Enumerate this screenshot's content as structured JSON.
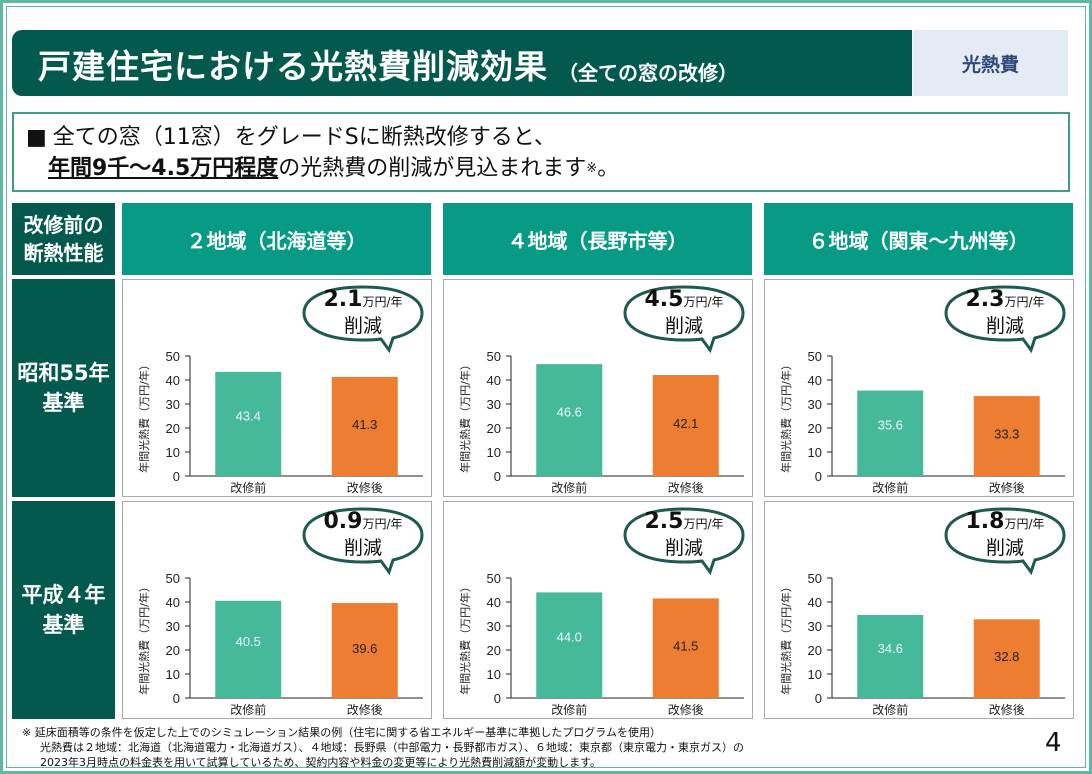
{
  "header": {
    "title": "戸建住宅における光熱費削減効果",
    "subtitle": "（全ての窓の改修）",
    "tag": "光熱費"
  },
  "summary": {
    "bullet": "■",
    "line1": "全ての窓（11窓）をグレードSに断熱改修すると、",
    "line2_emphasis": "年間9千～4.5万円程度",
    "line2_rest": "の光熱費の削減が見込まれます",
    "line2_note": "※",
    "line2_end": "。"
  },
  "table": {
    "corner_label_line1": "改修前の",
    "corner_label_line2": "断熱性能",
    "columns": [
      "２地域（北海道等）",
      "４地域（長野市等）",
      "６地域（関東～九州等）"
    ],
    "rows": [
      {
        "line1": "昭和55年",
        "line2": "基準"
      },
      {
        "line1": "平成４年",
        "line2": "基準"
      }
    ]
  },
  "colors": {
    "before_bar": "#46b99b",
    "after_bar": "#ed7d31",
    "dark_green": "#03594d",
    "teal": "#079a85"
  },
  "chart_data": [
    {
      "type": "bar",
      "row": "昭和55年基準",
      "region": "２地域（北海道等）",
      "categories": [
        "改修前",
        "改修後"
      ],
      "values": [
        43.4,
        41.3
      ],
      "ylabel": "年間光熱費（万円/年）",
      "ylim": [
        0,
        50
      ],
      "yticks": [
        0,
        10,
        20,
        30,
        40,
        50
      ],
      "savings_value": "2.1",
      "savings_unit": "万円/年",
      "savings_label": "削減"
    },
    {
      "type": "bar",
      "row": "昭和55年基準",
      "region": "４地域（長野市等）",
      "categories": [
        "改修前",
        "改修後"
      ],
      "values": [
        46.6,
        42.1
      ],
      "ylabel": "年間光熱費（万円/年）",
      "ylim": [
        0,
        50
      ],
      "yticks": [
        0,
        10,
        20,
        30,
        40,
        50
      ],
      "savings_value": "4.5",
      "savings_unit": "万円/年",
      "savings_label": "削減"
    },
    {
      "type": "bar",
      "row": "昭和55年基準",
      "region": "６地域（関東～九州等）",
      "categories": [
        "改修前",
        "改修後"
      ],
      "values": [
        35.6,
        33.3
      ],
      "ylabel": "年間光熱費（万円/年）",
      "ylim": [
        0,
        50
      ],
      "yticks": [
        0,
        10,
        20,
        30,
        40,
        50
      ],
      "savings_value": "2.3",
      "savings_unit": "万円/年",
      "savings_label": "削減"
    },
    {
      "type": "bar",
      "row": "平成４年基準",
      "region": "２地域（北海道等）",
      "categories": [
        "改修前",
        "改修後"
      ],
      "values": [
        40.5,
        39.6
      ],
      "ylabel": "年間光熱費（万円/年）",
      "ylim": [
        0,
        50
      ],
      "yticks": [
        0,
        10,
        20,
        30,
        40,
        50
      ],
      "savings_value": "0.9",
      "savings_unit": "万円/年",
      "savings_label": "削減"
    },
    {
      "type": "bar",
      "row": "平成４年基準",
      "region": "４地域（長野市等）",
      "categories": [
        "改修前",
        "改修後"
      ],
      "values": [
        44.0,
        41.5
      ],
      "ylabel": "年間光熱費（万円/年）",
      "ylim": [
        0,
        50
      ],
      "yticks": [
        0,
        10,
        20,
        30,
        40,
        50
      ],
      "savings_value": "2.5",
      "savings_unit": "万円/年",
      "savings_label": "削減"
    },
    {
      "type": "bar",
      "row": "平成４年基準",
      "region": "６地域（関東～九州等）",
      "categories": [
        "改修前",
        "改修後"
      ],
      "values": [
        34.6,
        32.8
      ],
      "ylabel": "年間光熱費（万円/年）",
      "ylim": [
        0,
        50
      ],
      "yticks": [
        0,
        10,
        20,
        30,
        40,
        50
      ],
      "savings_value": "1.8",
      "savings_unit": "万円/年",
      "savings_label": "削減"
    }
  ],
  "footnote": {
    "line1": "※ 延床面積等の条件を仮定した上でのシミュレーション結果の例（住宅に関する省エネルギー基準に準拠したプログラムを使用）",
    "line2": "光熱費は２地域：北海道（北海道電力・北海道ガス）、４地域：長野県（中部電力・長野都市ガス）、６地域：東京都（東京電力・東京ガス）の",
    "line3": "2023年3月時点の料金表を用いて試算しているため、契約内容や料金の変更等により光熱費削減額が変動します。"
  },
  "page_number": "4"
}
